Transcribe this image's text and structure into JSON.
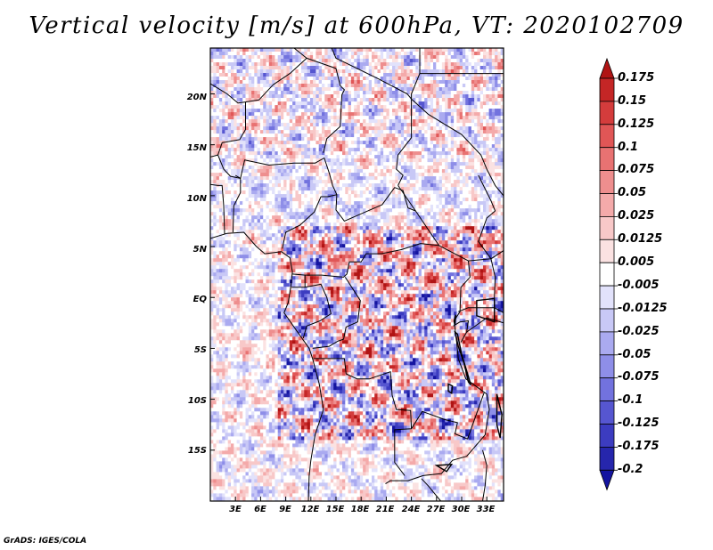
{
  "title": "Vertical velocity [m/s] at 600hPa, VT: 2020102709",
  "credit": "GrADS: IGES/COLA",
  "colors": {
    "positive_dark": "#a01a1a",
    "positive_light": "#f7d6d6",
    "negative_light": "#d8d8f7",
    "negative_dark": "#2a1aa0",
    "boundary": "#000000"
  },
  "chart_data": {
    "type": "heatmap",
    "title": "Vertical velocity [m/s] at 600hPa, VT: 2020102709",
    "variable": "Vertical velocity",
    "units": "m/s",
    "level": "600hPa",
    "valid_time": "2020102709",
    "x_ticks": [
      "3E",
      "6E",
      "9E",
      "12E",
      "15E",
      "18E",
      "21E",
      "24E",
      "27E",
      "30E",
      "33E"
    ],
    "y_ticks": [
      "20N",
      "15N",
      "10N",
      "5N",
      "EQ",
      "5S",
      "10S",
      "15S"
    ],
    "lon_range": [
      0,
      35
    ],
    "lat_range": [
      -20,
      24.5
    ],
    "colorbar_levels": [
      "0.175",
      "0.15",
      "0.125",
      "0.1",
      "0.075",
      "0.05",
      "0.025",
      "0.0125",
      "0.005",
      "-0.005",
      "-0.0125",
      "-0.025",
      "-0.05",
      "-0.075",
      "-0.1",
      "-0.125",
      "-0.175",
      "-0.2"
    ],
    "colorbar_colors": [
      "#b01414",
      "#c42626",
      "#d43c3c",
      "#e05656",
      "#e87272",
      "#ee8e8e",
      "#f4aaaa",
      "#f8c8c8",
      "#fbe2e2",
      "#ffffff",
      "#e2e2fb",
      "#c8c8f6",
      "#aaaaf0",
      "#8e8ee8",
      "#7272de",
      "#5656d0",
      "#3c3cc0",
      "#2626ac",
      "#1414a0"
    ]
  }
}
